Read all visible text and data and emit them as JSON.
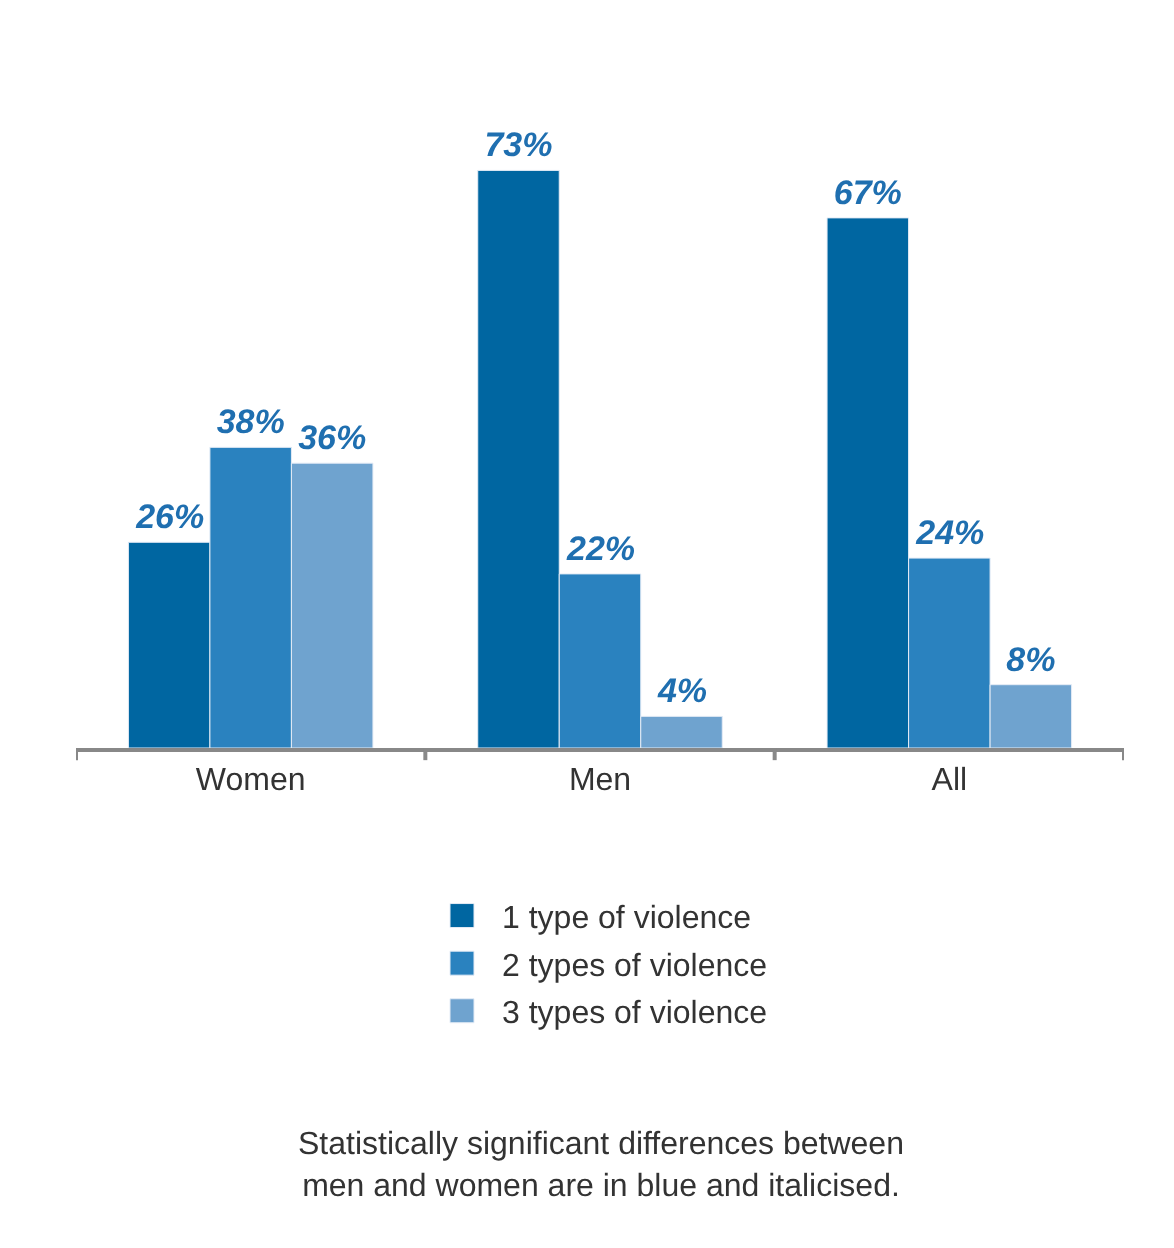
{
  "chart_data": {
    "type": "bar",
    "categories": [
      "Women",
      "Men",
      "All"
    ],
    "series": [
      {
        "name": "1 type of violence",
        "color": "#0066a1",
        "values": [
          26,
          73,
          67
        ],
        "value_labels": [
          "26%",
          "73%",
          "67%"
        ]
      },
      {
        "name": "2 types of violence",
        "color": "#2a82bf",
        "values": [
          38,
          22,
          24
        ],
        "value_labels": [
          "38%",
          "22%",
          "24%"
        ]
      },
      {
        "name": "3 types of violence",
        "color": "#6fa3cf",
        "values": [
          36,
          4,
          8
        ],
        "value_labels": [
          "36%",
          "4%",
          "8%"
        ]
      }
    ],
    "legend": "bottom",
    "annotations": [
      "Statistically significant differences between\nmen and women are in blue and italicised."
    ]
  }
}
